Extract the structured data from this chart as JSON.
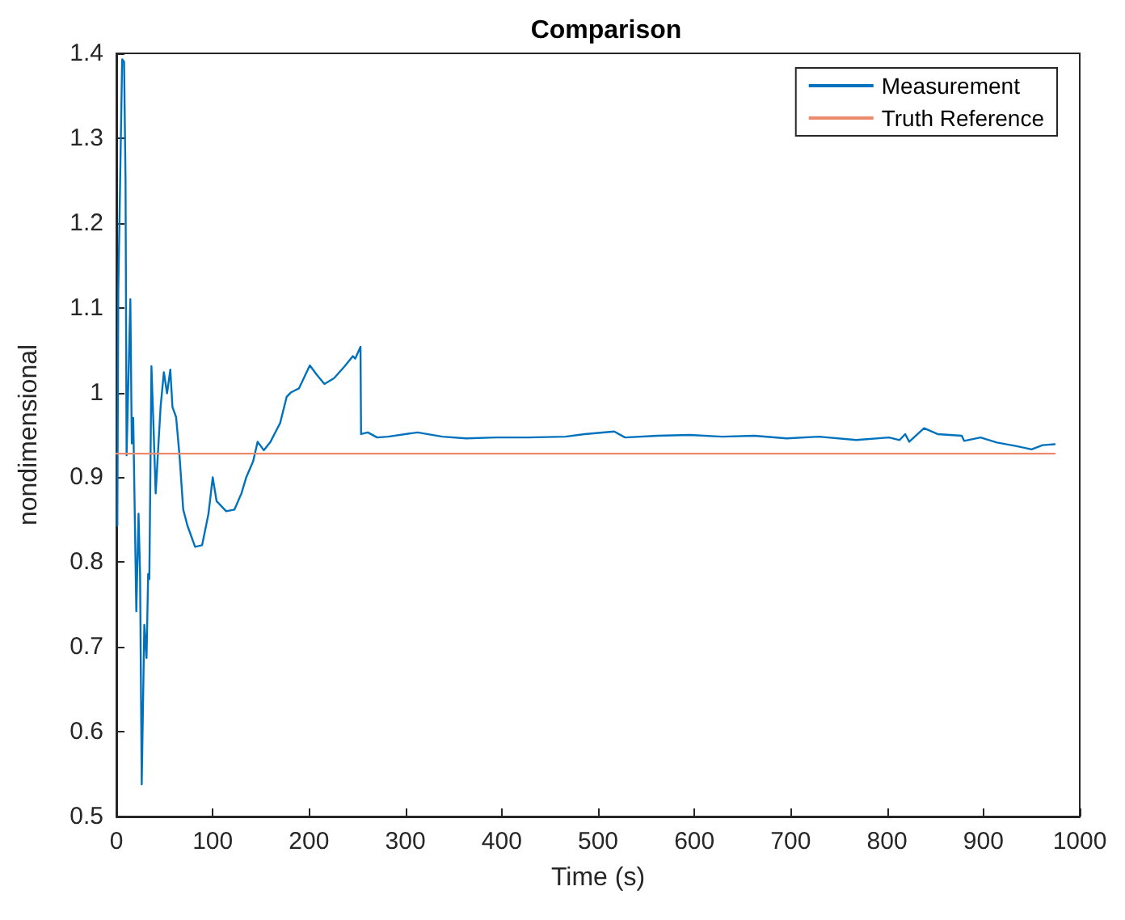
{
  "chart_data": {
    "type": "line",
    "title": "Comparison",
    "xlabel": "Time (s)",
    "ylabel": "nondimensional",
    "xlim": [
      0,
      1000
    ],
    "xticks": [
      0,
      100,
      200,
      300,
      400,
      500,
      600,
      700,
      800,
      900,
      1000
    ],
    "ylim": [
      0.5,
      1.4
    ],
    "yticks": [
      0.5,
      0.6,
      0.7,
      0.8,
      0.9,
      1,
      1.1,
      1.2,
      1.3,
      1.4
    ],
    "grid": false,
    "legend": "top right",
    "marker": "none",
    "line_style": "solid",
    "series": [
      {
        "name": "Measurement",
        "color": "#0072bd",
        "x": [
          1,
          2,
          6,
          8,
          9.5,
          10.6,
          14.5,
          16,
          17.5,
          20.7,
          23,
          24.6,
          26.3,
          29,
          31.3,
          33,
          34.2,
          36.4,
          38.6,
          40.8,
          43,
          45.9,
          49.3,
          52.6,
          56,
          58.2,
          62,
          65.5,
          69.4,
          73.8,
          81.7,
          89,
          95.6,
          100,
          104,
          114,
          122.6,
          129.8,
          134.8,
          142,
          146.6,
          153,
          160,
          170,
          176.8,
          181,
          189.6,
          200.8,
          208,
          216,
          226,
          237,
          245.5,
          248,
          253.4,
          254,
          261,
          270.7,
          282,
          312.6,
          338.5,
          363,
          394,
          427,
          466,
          486,
          516.8,
          528,
          561.6,
          595,
          628.7,
          662,
          695.8,
          729,
          768,
          802,
          813,
          818.8,
          823,
          838.4,
          852.5,
          877.5,
          880,
          897,
          914,
          933.4,
          950,
          961.5,
          974
        ],
        "values": [
          0.843,
          1.12,
          1.393,
          1.39,
          1.25,
          0.926,
          1.11,
          0.94,
          0.97,
          0.742,
          0.857,
          0.785,
          0.538,
          0.726,
          0.687,
          0.786,
          0.78,
          1.031,
          0.958,
          0.881,
          0.926,
          0.983,
          1.024,
          0.999,
          1.027,
          0.983,
          0.971,
          0.926,
          0.862,
          0.843,
          0.818,
          0.82,
          0.857,
          0.9,
          0.872,
          0.86,
          0.862,
          0.881,
          0.9,
          0.919,
          0.942,
          0.932,
          0.942,
          0.964,
          0.995,
          1.0,
          1.005,
          1.032,
          1.021,
          1.01,
          1.017,
          1.031,
          1.043,
          1.04,
          1.054,
          0.951,
          0.953,
          0.947,
          0.948,
          0.953,
          0.948,
          0.946,
          0.947,
          0.947,
          0.948,
          0.951,
          0.954,
          0.947,
          0.949,
          0.95,
          0.948,
          0.949,
          0.946,
          0.948,
          0.944,
          0.947,
          0.944,
          0.951,
          0.942,
          0.958,
          0.951,
          0.949,
          0.943,
          0.947,
          0.941,
          0.937,
          0.933,
          0.938,
          0.939
        ]
      },
      {
        "name": "Truth Reference",
        "color": "#ec8a6b",
        "x": [
          0,
          974
        ],
        "values": [
          0.928,
          0.928
        ]
      }
    ]
  }
}
